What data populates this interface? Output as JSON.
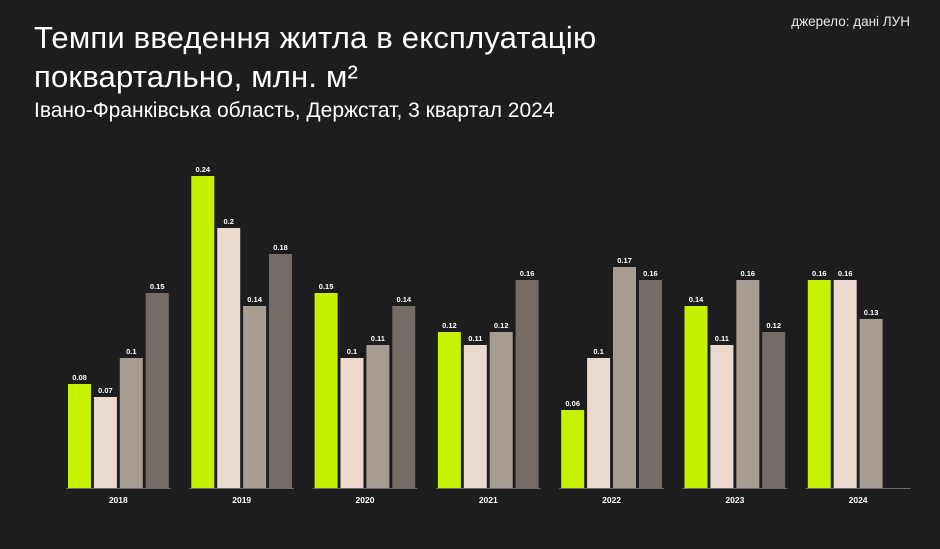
{
  "header": {
    "title": "Темпи введення житла в експлуатацію поквартально, млн. м²",
    "subtitle": "Івано-Франківська область, Держстат, 3 квартал 2024",
    "source": "джерело: дані ЛУН"
  },
  "colors": {
    "background": "#1d1d20",
    "q1": "#c6f200",
    "q2": "#ecd9cd",
    "q3": "#a69c92",
    "q4": "#766c66",
    "axis": "#6a6a6a"
  },
  "chart_data": {
    "type": "bar",
    "title": "Темпи введення житла в експлуатацію поквартально, млн. м²",
    "subtitle": "Івано-Франківська область, Держстат, 3 квартал 2024",
    "xlabel": "",
    "ylabel": "",
    "ylim": [
      0,
      0.24
    ],
    "grid": false,
    "legend": "none",
    "categories": [
      "2018",
      "2019",
      "2020",
      "2021",
      "2022",
      "2023",
      "2024"
    ],
    "series": [
      {
        "color": "#c6f200",
        "values": [
          0.08,
          0.24,
          0.15,
          0.12,
          0.06,
          0.14,
          0.16
        ]
      },
      {
        "color": "#ecd9cd",
        "values": [
          0.07,
          0.2,
          0.1,
          0.11,
          0.1,
          0.11,
          0.16
        ]
      },
      {
        "color": "#a69c92",
        "values": [
          0.1,
          0.14,
          0.11,
          0.12,
          0.17,
          0.16,
          0.13
        ]
      },
      {
        "color": "#766c66",
        "values": [
          0.15,
          0.18,
          0.14,
          0.16,
          0.16,
          0.12,
          null
        ]
      }
    ],
    "value_labels": [
      [
        "0.08",
        "0.24",
        "0.15",
        "0.12",
        "0.06",
        "0.14",
        "0.16"
      ],
      [
        "0.07",
        "0.2",
        "0.1",
        "0.11",
        "0.1",
        "0.11",
        "0.16"
      ],
      [
        "0.1",
        "0.14",
        "0.11",
        "0.12",
        "0.17",
        "0.16",
        "0.13"
      ],
      [
        "0.15",
        "0.18",
        "0.14",
        "0.16",
        "0.16",
        "0.12",
        ""
      ]
    ]
  }
}
